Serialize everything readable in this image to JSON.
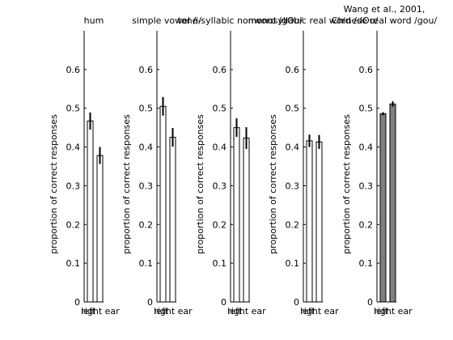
{
  "figure": {
    "background": "#ffffff"
  },
  "chart_data": [
    {
      "type": "bar",
      "title": "hum",
      "title_lines": [
        "hum"
      ],
      "ylabel": "proportion of correct responses",
      "categories": [
        "left ear",
        "right ear"
      ],
      "category_tick_text": [
        "left",
        "right ear"
      ],
      "values": [
        0.467,
        0.378
      ],
      "errors": [
        0.022,
        0.022
      ],
      "ylim": [
        0,
        0.7
      ],
      "yticks": [
        0,
        0.1,
        0.2,
        0.3,
        0.4,
        0.5,
        0.6
      ],
      "bar_colors": [
        "#ffffff",
        "#ffffff"
      ],
      "grid": false
    },
    {
      "type": "bar",
      "title": "simple vowel /i/",
      "title_lines": [
        "simple vowel /i/"
      ],
      "ylabel": "proportion of correct responses",
      "categories": [
        "left ear",
        "right ear"
      ],
      "category_tick_text": [
        "left",
        "right ear"
      ],
      "values": [
        0.505,
        0.425
      ],
      "errors": [
        0.024,
        0.024
      ],
      "ylim": [
        0,
        0.7
      ],
      "yticks": [
        0,
        0.1,
        0.2,
        0.3,
        0.4,
        0.5,
        0.6
      ],
      "bar_colors": [
        "#ffffff",
        "#ffffff"
      ],
      "grid": false
    },
    {
      "type": "bar",
      "title": "tone-syllabic nonword /gOu/",
      "title_lines": [
        "tone-syllabic nonword /gOu/"
      ],
      "ylabel": "proportion of correct responses",
      "categories": [
        "left ear",
        "right ear"
      ],
      "category_tick_text": [
        "left",
        "right ear"
      ],
      "values": [
        0.45,
        0.423
      ],
      "errors": [
        0.024,
        0.028
      ],
      "ylim": [
        0,
        0.7
      ],
      "yticks": [
        0,
        0.1,
        0.2,
        0.3,
        0.4,
        0.5,
        0.6
      ],
      "bar_colors": [
        "#ffffff",
        "#ffffff"
      ],
      "grid": false
    },
    {
      "type": "bar",
      "title": "monosyllabic real word /dOu/",
      "title_lines": [
        "monosyllabic real word /dOu/"
      ],
      "ylabel": "proportion of correct responses",
      "categories": [
        "left ear",
        "right ear"
      ],
      "category_tick_text": [
        "left",
        "right ear"
      ],
      "values": [
        0.416,
        0.413
      ],
      "errors": [
        0.016,
        0.018
      ],
      "ylim": [
        0,
        0.7
      ],
      "yticks": [
        0,
        0.1,
        0.2,
        0.3,
        0.4,
        0.5,
        0.6
      ],
      "bar_colors": [
        "#ffffff",
        "#ffffff"
      ],
      "grid": false
    },
    {
      "type": "bar",
      "title": "Wang et al., 2001, Chinese real word /gou/",
      "title_lines": [
        "Wang et al., 2001,",
        "Chinese real word /gou/"
      ],
      "ylabel": "proportion of correct responses",
      "categories": [
        "left ear",
        "right ear"
      ],
      "category_tick_text": [
        "left",
        "right ear"
      ],
      "values": [
        0.486,
        0.511
      ],
      "errors": [
        0.004,
        0.007
      ],
      "ylim": [
        0,
        0.7
      ],
      "yticks": [
        0,
        0.1,
        0.2,
        0.3,
        0.4,
        0.5,
        0.6
      ],
      "bar_colors": [
        "#808080",
        "#808080"
      ],
      "grid": false
    }
  ]
}
